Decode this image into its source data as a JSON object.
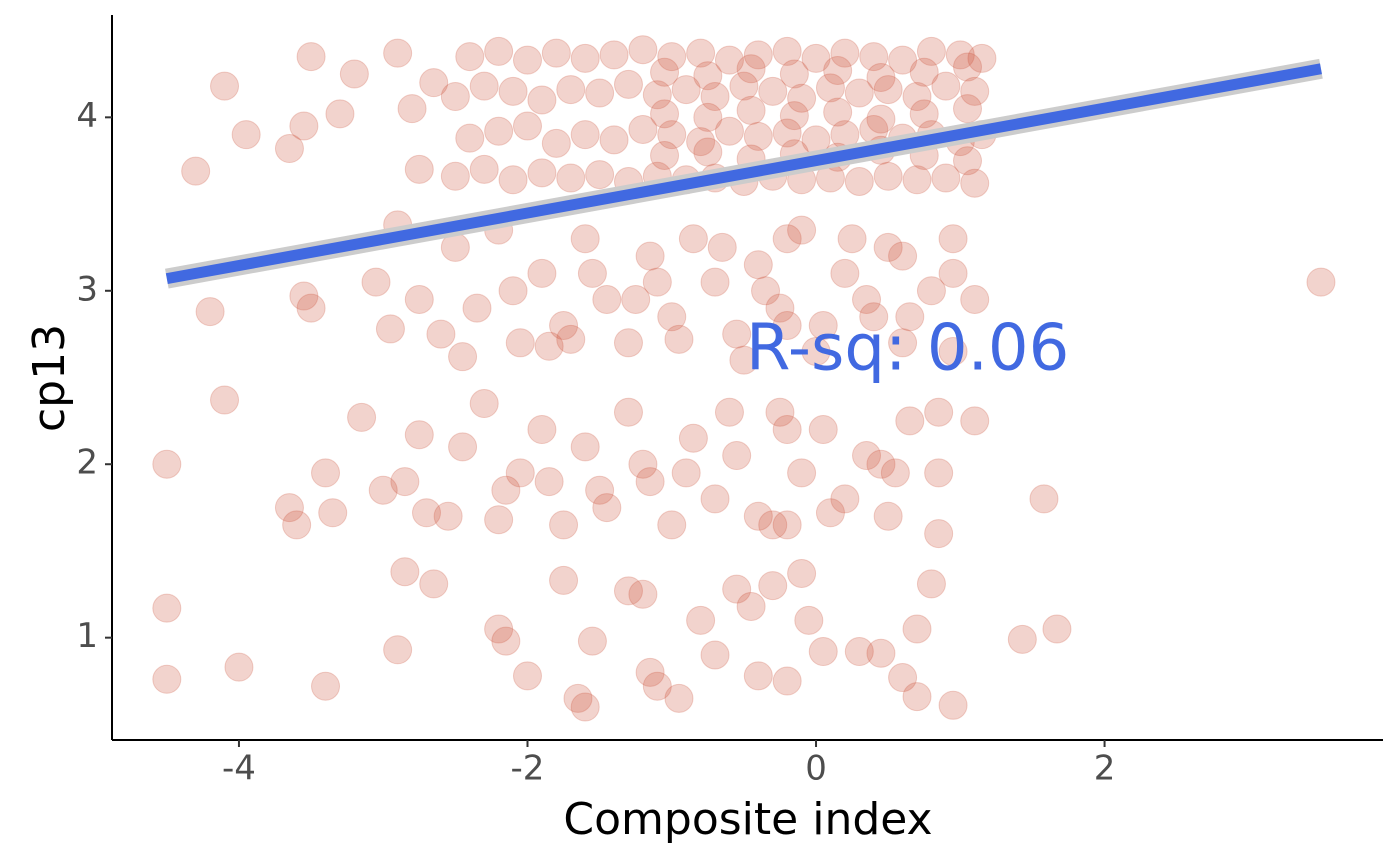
{
  "chart_data": {
    "type": "scatter",
    "x_label": "Composite index",
    "y_label": "cp13",
    "annotation": "R-sq: 0.06",
    "xlim": [
      -4.88,
      3.93
    ],
    "ylim": [
      0.41,
      4.59
    ],
    "xticks": [
      -4,
      -2,
      0,
      2
    ],
    "yticks": [
      1,
      2,
      3,
      4
    ],
    "grid": false,
    "color": "#cd4f39",
    "opacity": 0.25,
    "x": [
      -2.5,
      -2.3,
      -2.1,
      -1.9,
      -1.7,
      -1.5,
      -1.3,
      -1.1,
      -0.9,
      -0.7,
      -0.5,
      -0.3,
      -0.1,
      0.1,
      0.3,
      0.5,
      0.7,
      0.9,
      1.1,
      -2.4,
      -2.2,
      -2.0,
      -1.8,
      -1.6,
      -1.4,
      -1.2,
      -1.0,
      -0.8,
      -0.6,
      -0.4,
      -0.2,
      0.0,
      0.2,
      0.4,
      0.6,
      0.8,
      1.0,
      1.15,
      -2.5,
      -2.3,
      -2.1,
      -1.9,
      -1.7,
      -1.5,
      -1.3,
      -1.1,
      -0.9,
      -0.7,
      -0.5,
      -0.3,
      -0.1,
      0.1,
      0.3,
      0.5,
      0.7,
      0.9,
      1.1,
      -2.4,
      -2.2,
      -2.0,
      -1.8,
      -1.6,
      -1.4,
      -1.2,
      -1.0,
      -0.8,
      -0.6,
      -0.4,
      -0.2,
      0.0,
      0.2,
      0.4,
      0.6,
      0.8,
      1.0,
      1.15,
      -1.05,
      -0.75,
      -0.45,
      -0.15,
      0.15,
      0.45,
      0.75,
      1.05,
      -1.05,
      -0.75,
      -0.45,
      -0.15,
      0.15,
      0.45,
      0.75,
      1.05,
      -1.05,
      -0.75,
      -0.45,
      -0.15,
      0.15,
      0.45,
      0.75,
      1.05,
      -4.1,
      -3.95,
      -4.3,
      -3.65,
      -3.55,
      -3.5,
      -3.3,
      -3.2,
      -2.9,
      -2.8,
      -2.75,
      -2.65,
      -4.2,
      -3.55,
      -3.5,
      -3.05,
      -2.95,
      -2.9,
      -2.75,
      -2.6,
      -2.5,
      -2.35,
      -2.2,
      -2.05,
      -1.9,
      -1.75,
      -1.6,
      -1.45,
      -1.3,
      -1.15,
      -1.0,
      -0.85,
      -0.7,
      -0.55,
      -0.4,
      -0.25,
      -0.1,
      0.05,
      0.2,
      0.35,
      0.5,
      0.65,
      0.8,
      0.95,
      1.1,
      3.5,
      -2.45,
      -2.1,
      -1.85,
      -1.55,
      -1.25,
      -0.95,
      -0.65,
      -0.35,
      -0.2,
      -0.2,
      0.25,
      0.6,
      0.6,
      0.95,
      0.95,
      -1.7,
      -1.1,
      -0.5,
      0.0,
      0.4,
      -4.5,
      -3.65,
      -3.6,
      -3.4,
      -3.35,
      -3.15,
      -3.0,
      -2.85,
      -2.75,
      -2.7,
      -2.55,
      -2.45,
      -2.3,
      -2.15,
      -2.05,
      -1.9,
      -1.75,
      -1.6,
      -1.45,
      -1.3,
      -1.15,
      -1.0,
      -0.85,
      -0.7,
      -0.55,
      -0.4,
      -0.25,
      -0.1,
      0.05,
      0.2,
      0.35,
      0.5,
      0.65,
      0.85,
      0.85,
      0.85,
      1.1,
      1.58,
      -2.2,
      -1.85,
      -1.5,
      -1.2,
      -0.9,
      -0.6,
      -0.3,
      0.1,
      0.45,
      0.55,
      -0.2,
      -0.2,
      -4.5,
      -4.5,
      -4.0,
      -4.1,
      -3.4,
      -2.9,
      -2.85,
      -2.65,
      -2.2,
      -2.15,
      -2.0,
      -1.75,
      -1.65,
      -1.6,
      -1.55,
      -1.3,
      -1.2,
      -1.15,
      -1.1,
      -0.95,
      -0.8,
      -0.7,
      -0.55,
      -0.45,
      -0.4,
      -0.3,
      -0.2,
      -0.1,
      -0.05,
      0.05,
      0.3,
      0.45,
      0.6,
      0.7,
      0.7,
      0.8,
      0.95,
      1.43,
      1.67
    ],
    "values": [
      3.66,
      3.7,
      3.64,
      3.68,
      3.65,
      3.67,
      3.63,
      3.66,
      3.64,
      3.65,
      3.63,
      3.66,
      3.64,
      3.65,
      3.63,
      3.66,
      3.64,
      3.65,
      3.62,
      3.88,
      3.92,
      3.95,
      3.85,
      3.9,
      3.87,
      3.93,
      3.9,
      3.86,
      3.92,
      3.89,
      3.91,
      3.87,
      3.9,
      3.93,
      3.88,
      3.9,
      3.86,
      3.9,
      4.12,
      4.18,
      4.15,
      4.1,
      4.16,
      4.14,
      4.19,
      4.13,
      4.16,
      4.12,
      4.18,
      4.15,
      4.11,
      4.17,
      4.14,
      4.16,
      4.12,
      4.18,
      4.15,
      4.35,
      4.38,
      4.33,
      4.37,
      4.34,
      4.36,
      4.39,
      4.35,
      4.37,
      4.33,
      4.36,
      4.38,
      4.34,
      4.37,
      4.35,
      4.33,
      4.38,
      4.36,
      4.34,
      3.78,
      3.8,
      3.76,
      3.79,
      3.77,
      3.81,
      3.78,
      3.75,
      4.02,
      4.0,
      4.04,
      4.01,
      4.03,
      3.99,
      4.02,
      4.05,
      4.26,
      4.24,
      4.28,
      4.25,
      4.27,
      4.23,
      4.26,
      4.29,
      4.18,
      3.9,
      3.69,
      3.82,
      3.95,
      4.35,
      4.02,
      4.25,
      4.37,
      4.05,
      3.7,
      4.2,
      2.88,
      2.97,
      2.9,
      3.05,
      2.78,
      3.38,
      2.95,
      2.75,
      3.25,
      2.9,
      3.35,
      2.7,
      3.1,
      2.8,
      3.3,
      2.95,
      2.7,
      3.2,
      2.85,
      3.3,
      3.05,
      2.75,
      3.15,
      2.9,
      3.35,
      2.8,
      3.1,
      2.95,
      3.25,
      2.85,
      3.0,
      3.3,
      2.95,
      3.05,
      2.62,
      3.0,
      2.68,
      3.1,
      2.95,
      2.72,
      3.25,
      3.0,
      3.3,
      2.8,
      3.3,
      2.7,
      3.2,
      2.65,
      3.1,
      2.72,
      3.05,
      2.6,
      2.65,
      2.85,
      2.0,
      1.75,
      1.65,
      1.95,
      1.72,
      2.27,
      1.85,
      1.9,
      2.17,
      1.72,
      1.7,
      2.1,
      2.35,
      1.85,
      1.95,
      2.2,
      1.65,
      2.1,
      1.75,
      2.3,
      1.9,
      1.65,
      2.15,
      1.8,
      2.05,
      1.7,
      2.3,
      1.95,
      2.2,
      1.8,
      2.05,
      1.7,
      2.25,
      1.6,
      1.95,
      2.3,
      2.25,
      1.8,
      1.68,
      1.9,
      1.85,
      2.0,
      1.95,
      2.3,
      1.65,
      1.72,
      2.0,
      1.95,
      2.2,
      1.65,
      1.17,
      0.76,
      0.83,
      2.37,
      0.72,
      0.93,
      1.38,
      1.31,
      1.05,
      0.98,
      0.78,
      1.33,
      0.65,
      0.6,
      0.98,
      1.27,
      1.25,
      0.8,
      0.72,
      0.65,
      1.1,
      0.9,
      1.28,
      1.18,
      0.78,
      1.3,
      0.75,
      1.37,
      1.1,
      0.92,
      0.92,
      0.91,
      0.77,
      1.05,
      0.66,
      1.31,
      0.61,
      0.99,
      1.05
    ],
    "fit": {
      "x": [
        -4.5,
        3.5
      ],
      "values": [
        3.07,
        4.28
      ],
      "color": "#4169e1"
    }
  }
}
